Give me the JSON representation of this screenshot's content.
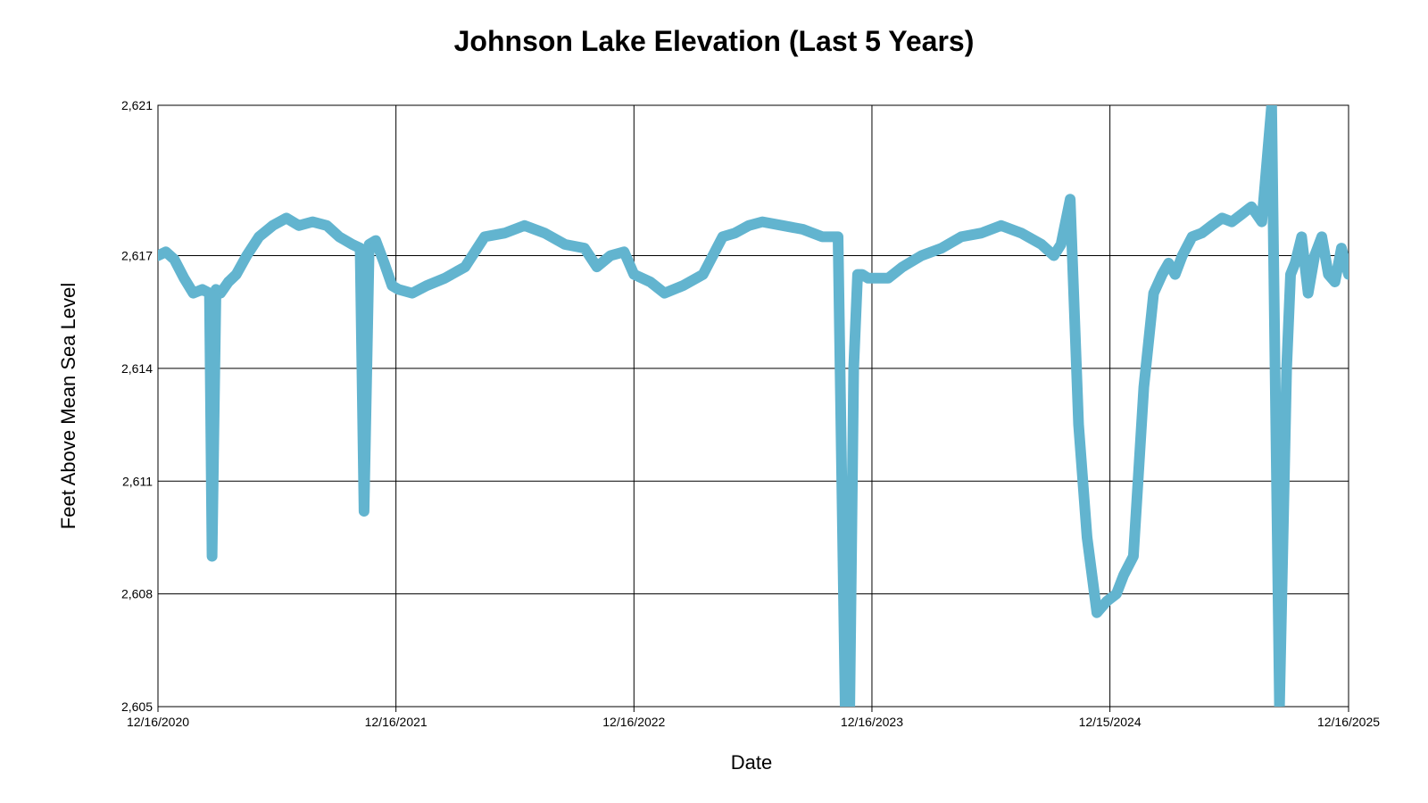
{
  "chart_data": {
    "type": "line",
    "title": "Johnson Lake Elevation (Last 5 Years)",
    "xlabel": "Date",
    "ylabel": "Feet Above Mean Sea Level",
    "ylim": [
      2605,
      2621
    ],
    "y_ticks": [
      2605,
      2608,
      2611,
      2614,
      2617,
      2621
    ],
    "y_tick_labels": [
      "2,605",
      "2,608",
      "2,611",
      "2,614",
      "2,617",
      "2,621"
    ],
    "x_range": [
      "2020-12-16",
      "2025-12-16"
    ],
    "x_ticks": [
      "2020-12-16",
      "2021-12-16",
      "2022-12-16",
      "2023-12-16",
      "2024-12-15",
      "2025-12-16"
    ],
    "x_tick_labels": [
      "12/16/2020",
      "12/16/2021",
      "12/16/2022",
      "12/16/2023",
      "12/15/2024",
      "12/16/2025"
    ],
    "grid": true,
    "line_color": "#62b4cf",
    "series": [
      {
        "x": [
          "2020-12-16",
          "2020-12-28",
          "2021-01-10",
          "2021-01-25",
          "2021-02-08",
          "2021-02-22",
          "2021-03-05",
          "2021-03-09",
          "2021-03-15",
          "2021-03-22",
          "2021-04-03",
          "2021-04-15",
          "2021-05-01",
          "2021-05-20",
          "2021-06-10",
          "2021-07-01",
          "2021-07-20",
          "2021-08-10",
          "2021-09-01",
          "2021-09-20",
          "2021-10-10",
          "2021-10-22",
          "2021-10-28",
          "2021-11-05",
          "2021-11-15",
          "2021-11-28",
          "2021-12-10",
          "2021-12-20",
          "2022-01-10",
          "2022-02-01",
          "2022-03-01",
          "2022-04-01",
          "2022-05-01",
          "2022-06-01",
          "2022-07-01",
          "2022-08-01",
          "2022-09-01",
          "2022-10-01",
          "2022-10-20",
          "2022-11-10",
          "2022-12-01",
          "2022-12-16",
          "2023-01-10",
          "2023-02-01",
          "2023-03-01",
          "2023-04-01",
          "2023-05-01",
          "2023-05-20",
          "2023-06-10",
          "2023-07-01",
          "2023-08-01",
          "2023-09-01",
          "2023-10-01",
          "2023-10-25",
          "2023-11-05",
          "2023-11-12",
          "2023-11-18",
          "2023-11-24",
          "2023-12-01",
          "2023-12-10",
          "2024-01-10",
          "2024-02-01",
          "2024-03-01",
          "2024-04-01",
          "2024-05-01",
          "2024-06-01",
          "2024-07-01",
          "2024-08-01",
          "2024-09-01",
          "2024-09-20",
          "2024-10-01",
          "2024-10-15",
          "2024-10-28",
          "2024-11-10",
          "2024-11-25",
          "2024-12-10",
          "2024-12-25",
          "2025-01-05",
          "2025-01-20",
          "2025-02-05",
          "2025-02-20",
          "2025-03-05",
          "2025-03-15",
          "2025-03-25",
          "2025-04-05",
          "2025-04-20",
          "2025-05-05",
          "2025-05-20",
          "2025-06-05",
          "2025-06-20",
          "2025-07-05",
          "2025-07-20",
          "2025-08-05",
          "2025-08-20",
          "2025-09-01",
          "2025-09-12",
          "2025-09-18",
          "2025-09-25",
          "2025-10-05",
          "2025-10-15",
          "2025-10-25",
          "2025-11-05",
          "2025-11-15",
          "2025-11-25",
          "2025-12-05",
          "2025-12-16"
        ],
        "y": [
          2617.0,
          2617.1,
          2616.9,
          2616.4,
          2616.0,
          2616.1,
          2616.0,
          2609.0,
          2616.1,
          2616.0,
          2616.3,
          2616.5,
          2617.0,
          2617.5,
          2617.8,
          2618.0,
          2617.8,
          2617.9,
          2617.8,
          2617.5,
          2617.3,
          2617.2,
          2610.2,
          2617.3,
          2617.4,
          2616.8,
          2616.2,
          2616.1,
          2616.0,
          2616.2,
          2616.4,
          2616.7,
          2617.5,
          2617.6,
          2617.8,
          2617.6,
          2617.3,
          2617.2,
          2616.7,
          2617.0,
          2617.1,
          2616.5,
          2616.3,
          2616.0,
          2616.2,
          2616.5,
          2617.5,
          2617.6,
          2617.8,
          2617.9,
          2617.8,
          2617.7,
          2617.5,
          2617.5,
          2605.0,
          2605.0,
          2614.0,
          2616.5,
          2616.5,
          2616.4,
          2616.4,
          2616.7,
          2617.0,
          2617.2,
          2617.5,
          2617.6,
          2617.8,
          2617.6,
          2617.3,
          2617.0,
          2617.3,
          2618.5,
          2612.5,
          2609.5,
          2607.5,
          2607.8,
          2608.0,
          2608.5,
          2609.0,
          2613.5,
          2616.0,
          2616.5,
          2616.8,
          2616.5,
          2617.0,
          2617.5,
          2617.6,
          2617.8,
          2618.0,
          2617.9,
          2618.1,
          2618.3,
          2617.9,
          2621.0,
          2605.0,
          2614.0,
          2616.5,
          2616.8,
          2617.5,
          2616.0,
          2617.0,
          2617.5,
          2616.5,
          2616.3,
          2617.2,
          2616.5
        ]
      }
    ]
  }
}
